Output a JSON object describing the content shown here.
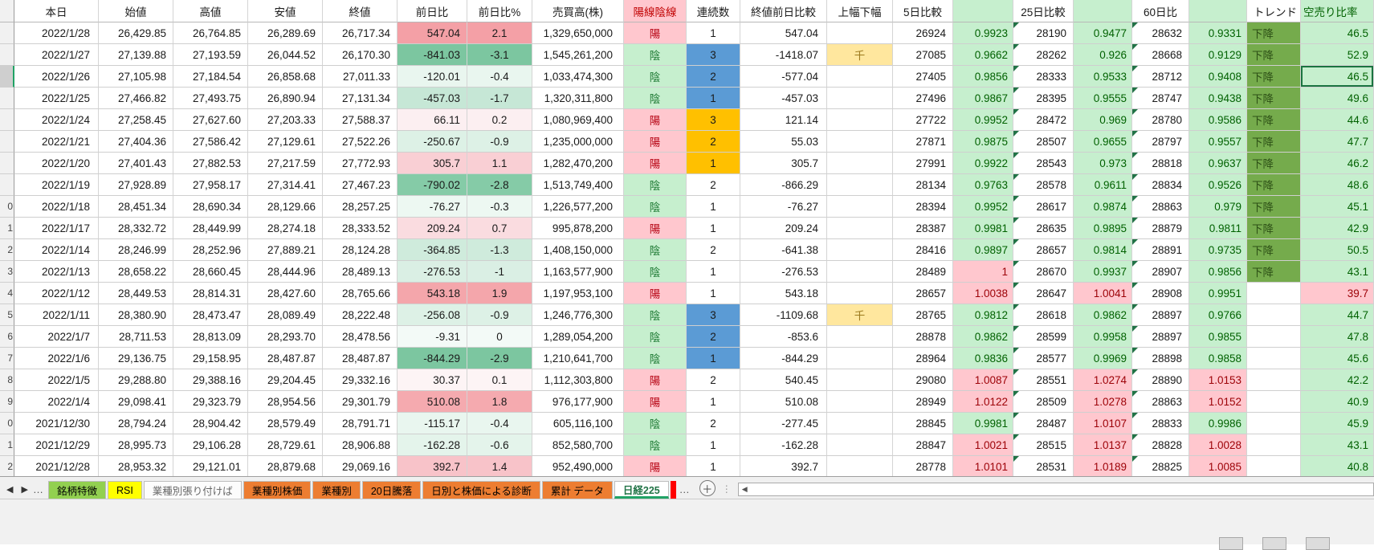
{
  "colors": {
    "accent_green": "#217346",
    "selection_green": "#1a7340",
    "candle_up_bg": "#ffc7ce",
    "candle_up_fg": "#b50010",
    "candle_down_bg": "#c6efce",
    "candle_down_fg": "#1e7a34",
    "ratio_down_bg": "#c6efce",
    "ratio_down_fg": "#006100",
    "ratio_up_bg": "#ffc7ce",
    "ratio_up_fg": "#9c0006",
    "streak_blue": "#5b9bd5",
    "streak_orange": "#ffc000",
    "note_bg": "#ffe79e",
    "note_fg": "#9c7a1d",
    "trend_bg": "#75ab4c"
  },
  "sheet": {
    "header": {
      "labels": [
        "本日",
        "始値",
        "高値",
        "安値",
        "終値",
        "前日比",
        "前日比%",
        "売買高(株)",
        "陽線陰線",
        "連続数",
        "終値前日比較",
        "上幅下幅",
        "5日比較",
        "",
        "25日比較",
        "",
        "60日比",
        "",
        "トレンド",
        "空売り比率"
      ]
    },
    "rows": [
      {
        "n": "",
        "date": "2022/1/28",
        "o": "26,429.85",
        "h": "26,764.85",
        "l": "26,289.69",
        "c": "26,717.34",
        "chg": "547.04",
        "pct": "2.1",
        "cbg": "#f4a0a6",
        "vol": "1,329,650,000",
        "candle": "陽",
        "streak": "1",
        "sbg": "none",
        "cmp": "547.04",
        "note": "",
        "d5": "26924",
        "d5r": "0.9923",
        "d5s": "dn",
        "d25": "28190",
        "d25r": "0.9477",
        "d25s": "dn",
        "d60": "28632",
        "d60r": "0.9331",
        "d60s": "dn",
        "trend": "下降",
        "sr": "46.5",
        "srs": "g",
        "sel": false
      },
      {
        "n": "",
        "date": "2022/1/27",
        "o": "27,139.88",
        "h": "27,193.59",
        "l": "26,044.52",
        "c": "26,170.30",
        "chg": "-841.03",
        "pct": "-3.1",
        "cbg": "#7cc6a0",
        "vol": "1,545,261,200",
        "candle": "陰",
        "streak": "3",
        "sbg": "blue",
        "cmp": "-1418.07",
        "note": "千",
        "d5": "27085",
        "d5r": "0.9662",
        "d5s": "dn",
        "d25": "28262",
        "d25r": "0.926",
        "d25s": "dn",
        "d60": "28668",
        "d60r": "0.9129",
        "d60s": "dn",
        "trend": "下降",
        "sr": "52.9",
        "srs": "g",
        "sel": false
      },
      {
        "n": "",
        "date": "2022/1/26",
        "o": "27,105.98",
        "h": "27,184.54",
        "l": "26,858.68",
        "c": "27,011.33",
        "chg": "-120.01",
        "pct": "-0.4",
        "cbg": "#e9f6ef",
        "vol": "1,033,474,300",
        "candle": "陰",
        "streak": "2",
        "sbg": "blue",
        "cmp": "-577.04",
        "note": "",
        "d5": "27405",
        "d5r": "0.9856",
        "d5s": "dn",
        "d25": "28333",
        "d25r": "0.9533",
        "d25s": "dn",
        "d60": "28712",
        "d60r": "0.9408",
        "d60s": "dn",
        "trend": "下降",
        "sr": "46.5",
        "srs": "g",
        "sel": true
      },
      {
        "n": "",
        "date": "2022/1/25",
        "o": "27,466.82",
        "h": "27,493.75",
        "l": "26,890.94",
        "c": "27,131.34",
        "chg": "-457.03",
        "pct": "-1.7",
        "cbg": "#c6e7d6",
        "vol": "1,320,311,800",
        "candle": "陰",
        "streak": "1",
        "sbg": "blue",
        "cmp": "-457.03",
        "note": "",
        "d5": "27496",
        "d5r": "0.9867",
        "d5s": "dn",
        "d25": "28395",
        "d25r": "0.9555",
        "d25s": "dn",
        "d60": "28747",
        "d60r": "0.9438",
        "d60s": "dn",
        "trend": "下降",
        "sr": "49.6",
        "srs": "g",
        "sel": false
      },
      {
        "n": "",
        "date": "2022/1/24",
        "o": "27,258.45",
        "h": "27,627.60",
        "l": "27,203.33",
        "c": "27,588.37",
        "chg": "66.11",
        "pct": "0.2",
        "cbg": "#fceff1",
        "vol": "1,080,969,400",
        "candle": "陽",
        "streak": "3",
        "sbg": "orange",
        "cmp": "121.14",
        "note": "",
        "d5": "27722",
        "d5r": "0.9952",
        "d5s": "dn",
        "d25": "28472",
        "d25r": "0.969",
        "d25s": "dn",
        "d60": "28780",
        "d60r": "0.9586",
        "d60s": "dn",
        "trend": "下降",
        "sr": "44.6",
        "srs": "g",
        "sel": false
      },
      {
        "n": "",
        "date": "2022/1/21",
        "o": "27,404.36",
        "h": "27,586.42",
        "l": "27,129.61",
        "c": "27,522.26",
        "chg": "-250.67",
        "pct": "-0.9",
        "cbg": "#ddf1e6",
        "vol": "1,235,000,000",
        "candle": "陽",
        "streak": "2",
        "sbg": "orange",
        "cmp": "55.03",
        "note": "",
        "d5": "27871",
        "d5r": "0.9875",
        "d5s": "dn",
        "d25": "28507",
        "d25r": "0.9655",
        "d25s": "dn",
        "d60": "28797",
        "d60r": "0.9557",
        "d60s": "dn",
        "trend": "下降",
        "sr": "47.7",
        "srs": "g",
        "sel": false
      },
      {
        "n": "",
        "date": "2022/1/20",
        "o": "27,401.43",
        "h": "27,882.53",
        "l": "27,217.59",
        "c": "27,772.93",
        "chg": "305.7",
        "pct": "1.1",
        "cbg": "#f9cfd4",
        "vol": "1,282,470,200",
        "candle": "陽",
        "streak": "1",
        "sbg": "orange",
        "cmp": "305.7",
        "note": "",
        "d5": "27991",
        "d5r": "0.9922",
        "d5s": "dn",
        "d25": "28543",
        "d25r": "0.973",
        "d25s": "dn",
        "d60": "28818",
        "d60r": "0.9637",
        "d60s": "dn",
        "trend": "下降",
        "sr": "46.2",
        "srs": "g",
        "sel": false
      },
      {
        "n": "",
        "date": "2022/1/19",
        "o": "27,928.89",
        "h": "27,958.17",
        "l": "27,314.41",
        "c": "27,467.23",
        "chg": "-790.02",
        "pct": "-2.8",
        "cbg": "#85cba7",
        "vol": "1,513,749,400",
        "candle": "陰",
        "streak": "2",
        "sbg": "none",
        "cmp": "-866.29",
        "note": "",
        "d5": "28134",
        "d5r": "0.9763",
        "d5s": "dn",
        "d25": "28578",
        "d25r": "0.9611",
        "d25s": "dn",
        "d60": "28834",
        "d60r": "0.9526",
        "d60s": "dn",
        "trend": "下降",
        "sr": "48.6",
        "srs": "g",
        "sel": false
      },
      {
        "n": "0",
        "date": "2022/1/18",
        "o": "28,451.34",
        "h": "28,690.34",
        "l": "28,129.66",
        "c": "28,257.25",
        "chg": "-76.27",
        "pct": "-0.3",
        "cbg": "#edf8f2",
        "vol": "1,226,577,200",
        "candle": "陰",
        "streak": "1",
        "sbg": "none",
        "cmp": "-76.27",
        "note": "",
        "d5": "28394",
        "d5r": "0.9952",
        "d5s": "dn",
        "d25": "28617",
        "d25r": "0.9874",
        "d25s": "dn",
        "d60": "28863",
        "d60r": "0.979",
        "d60s": "dn",
        "trend": "下降",
        "sr": "45.1",
        "srs": "g",
        "sel": false
      },
      {
        "n": "1",
        "date": "2022/1/17",
        "o": "28,332.72",
        "h": "28,449.99",
        "l": "28,274.18",
        "c": "28,333.52",
        "chg": "209.24",
        "pct": "0.7",
        "cbg": "#fadce0",
        "vol": "995,878,200",
        "candle": "陽",
        "streak": "1",
        "sbg": "none",
        "cmp": "209.24",
        "note": "",
        "d5": "28387",
        "d5r": "0.9981",
        "d5s": "dn",
        "d25": "28635",
        "d25r": "0.9895",
        "d25s": "dn",
        "d60": "28879",
        "d60r": "0.9811",
        "d60s": "dn",
        "trend": "下降",
        "sr": "42.9",
        "srs": "g",
        "sel": false
      },
      {
        "n": "2",
        "date": "2022/1/14",
        "o": "28,246.99",
        "h": "28,252.96",
        "l": "27,889.21",
        "c": "28,124.28",
        "chg": "-364.85",
        "pct": "-1.3",
        "cbg": "#cfebdc",
        "vol": "1,408,150,000",
        "candle": "陰",
        "streak": "2",
        "sbg": "none",
        "cmp": "-641.38",
        "note": "",
        "d5": "28416",
        "d5r": "0.9897",
        "d5s": "dn",
        "d25": "28657",
        "d25r": "0.9814",
        "d25s": "dn",
        "d60": "28891",
        "d60r": "0.9735",
        "d60s": "dn",
        "trend": "下降",
        "sr": "50.5",
        "srs": "g",
        "sel": false
      },
      {
        "n": "3",
        "date": "2022/1/13",
        "o": "28,658.22",
        "h": "28,660.45",
        "l": "28,444.96",
        "c": "28,489.13",
        "chg": "-276.53",
        "pct": "-1",
        "cbg": "#daefe4",
        "vol": "1,163,577,900",
        "candle": "陰",
        "streak": "1",
        "sbg": "none",
        "cmp": "-276.53",
        "note": "",
        "d5": "28489",
        "d5r": "1",
        "d5s": "up",
        "d25": "28670",
        "d25r": "0.9937",
        "d25s": "dn",
        "d60": "28907",
        "d60r": "0.9856",
        "d60s": "dn",
        "trend": "下降",
        "sr": "43.1",
        "srs": "g",
        "sel": false
      },
      {
        "n": "4",
        "date": "2022/1/12",
        "o": "28,449.53",
        "h": "28,814.31",
        "l": "28,427.60",
        "c": "28,765.66",
        "chg": "543.18",
        "pct": "1.9",
        "cbg": "#f4a6ab",
        "vol": "1,197,953,100",
        "candle": "陽",
        "streak": "1",
        "sbg": "none",
        "cmp": "543.18",
        "note": "",
        "d5": "28657",
        "d5r": "1.0038",
        "d5s": "up",
        "d25": "28647",
        "d25r": "1.0041",
        "d25s": "up",
        "d60": "28908",
        "d60r": "0.9951",
        "d60s": "dn",
        "trend": "",
        "sr": "39.7",
        "srs": "p",
        "sel": false
      },
      {
        "n": "5",
        "date": "2022/1/11",
        "o": "28,380.90",
        "h": "28,473.47",
        "l": "28,089.49",
        "c": "28,222.48",
        "chg": "-256.08",
        "pct": "-0.9",
        "cbg": "#ddf1e6",
        "vol": "1,246,776,300",
        "candle": "陰",
        "streak": "3",
        "sbg": "blue",
        "cmp": "-1109.68",
        "note": "千",
        "d5": "28765",
        "d5r": "0.9812",
        "d5s": "dn",
        "d25": "28618",
        "d25r": "0.9862",
        "d25s": "dn",
        "d60": "28897",
        "d60r": "0.9766",
        "d60s": "dn",
        "trend": "",
        "sr": "44.7",
        "srs": "g",
        "sel": false
      },
      {
        "n": "6",
        "date": "2022/1/7",
        "o": "28,711.53",
        "h": "28,813.09",
        "l": "28,293.70",
        "c": "28,478.56",
        "chg": "-9.31",
        "pct": "0",
        "cbg": "#f3faf7",
        "vol": "1,289,054,200",
        "candle": "陰",
        "streak": "2",
        "sbg": "blue",
        "cmp": "-853.6",
        "note": "",
        "d5": "28878",
        "d5r": "0.9862",
        "d5s": "dn",
        "d25": "28599",
        "d25r": "0.9958",
        "d25s": "dn",
        "d60": "28897",
        "d60r": "0.9855",
        "d60s": "dn",
        "trend": "",
        "sr": "47.8",
        "srs": "g",
        "sel": false
      },
      {
        "n": "7",
        "date": "2022/1/6",
        "o": "29,136.75",
        "h": "29,158.95",
        "l": "28,487.87",
        "c": "28,487.87",
        "chg": "-844.29",
        "pct": "-2.9",
        "cbg": "#7cc6a0",
        "vol": "1,210,641,700",
        "candle": "陰",
        "streak": "1",
        "sbg": "blue",
        "cmp": "-844.29",
        "note": "",
        "d5": "28964",
        "d5r": "0.9836",
        "d5s": "dn",
        "d25": "28577",
        "d25r": "0.9969",
        "d25s": "dn",
        "d60": "28898",
        "d60r": "0.9858",
        "d60s": "dn",
        "trend": "",
        "sr": "45.6",
        "srs": "g",
        "sel": false
      },
      {
        "n": "8",
        "date": "2022/1/5",
        "o": "29,288.80",
        "h": "29,388.16",
        "l": "29,204.45",
        "c": "29,332.16",
        "chg": "30.37",
        "pct": "0.1",
        "cbg": "#fdf4f5",
        "vol": "1,112,303,800",
        "candle": "陽",
        "streak": "2",
        "sbg": "none",
        "cmp": "540.45",
        "note": "",
        "d5": "29080",
        "d5r": "1.0087",
        "d5s": "up",
        "d25": "28551",
        "d25r": "1.0274",
        "d25s": "up",
        "d60": "28890",
        "d60r": "1.0153",
        "d60s": "up",
        "trend": "",
        "sr": "42.2",
        "srs": "g",
        "sel": false
      },
      {
        "n": "9",
        "date": "2022/1/4",
        "o": "29,098.41",
        "h": "29,323.79",
        "l": "28,954.56",
        "c": "29,301.79",
        "chg": "510.08",
        "pct": "1.8",
        "cbg": "#f5aaaf",
        "vol": "976,177,900",
        "candle": "陽",
        "streak": "1",
        "sbg": "none",
        "cmp": "510.08",
        "note": "",
        "d5": "28949",
        "d5r": "1.0122",
        "d5s": "up",
        "d25": "28509",
        "d25r": "1.0278",
        "d25s": "up",
        "d60": "28863",
        "d60r": "1.0152",
        "d60s": "up",
        "trend": "",
        "sr": "40.9",
        "srs": "g",
        "sel": false
      },
      {
        "n": "0",
        "date": "2021/12/30",
        "o": "28,794.24",
        "h": "28,904.42",
        "l": "28,579.49",
        "c": "28,791.71",
        "chg": "-115.17",
        "pct": "-0.4",
        "cbg": "#e9f6ef",
        "vol": "605,116,100",
        "candle": "陰",
        "streak": "2",
        "sbg": "none",
        "cmp": "-277.45",
        "note": "",
        "d5": "28845",
        "d5r": "0.9981",
        "d5s": "dn",
        "d25": "28487",
        "d25r": "1.0107",
        "d25s": "up",
        "d60": "28833",
        "d60r": "0.9986",
        "d60s": "dn",
        "trend": "",
        "sr": "45.9",
        "srs": "g",
        "sel": false
      },
      {
        "n": "1",
        "date": "2021/12/29",
        "o": "28,995.73",
        "h": "29,106.28",
        "l": "28,729.61",
        "c": "28,906.88",
        "chg": "-162.28",
        "pct": "-0.6",
        "cbg": "#e4f4eb",
        "vol": "852,580,700",
        "candle": "陰",
        "streak": "1",
        "sbg": "none",
        "cmp": "-162.28",
        "note": "",
        "d5": "28847",
        "d5r": "1.0021",
        "d5s": "up",
        "d25": "28515",
        "d25r": "1.0137",
        "d25s": "up",
        "d60": "28828",
        "d60r": "1.0028",
        "d60s": "up",
        "trend": "",
        "sr": "43.1",
        "srs": "g",
        "sel": false
      },
      {
        "n": "2",
        "date": "2021/12/28",
        "o": "28,953.32",
        "h": "29,121.01",
        "l": "28,879.68",
        "c": "29,069.16",
        "chg": "392.7",
        "pct": "1.4",
        "cbg": "#f8c3c9",
        "vol": "952,490,000",
        "candle": "陽",
        "streak": "1",
        "sbg": "none",
        "cmp": "392.7",
        "note": "",
        "d5": "28778",
        "d5r": "1.0101",
        "d5s": "up",
        "d25": "28531",
        "d25r": "1.0189",
        "d25s": "up",
        "d60": "28825",
        "d60r": "1.0085",
        "d60s": "up",
        "trend": "",
        "sr": "40.8",
        "srs": "g",
        "sel": false
      }
    ]
  },
  "tabs": {
    "nav_prev_icon": "◀",
    "nav_next_icon": "▶",
    "overflow_left": "…",
    "overflow_right": "…",
    "add_label": "＋",
    "scroll_left_icon": "◀",
    "items": [
      {
        "label": "銘柄特徴",
        "bg": "#92d050",
        "fg": "#000000",
        "active": false
      },
      {
        "label": "RSI",
        "bg": "#ffff00",
        "fg": "#000000",
        "active": false
      },
      {
        "label": "業種別張り付けば",
        "bg": "#fcfcfc",
        "fg": "#666666",
        "active": false
      },
      {
        "label": "業種別株価",
        "bg": "#ed7d31",
        "fg": "#000000",
        "active": false
      },
      {
        "label": "業種別",
        "bg": "#ed7d31",
        "fg": "#000000",
        "active": false
      },
      {
        "label": "20日騰落",
        "bg": "#ed7d31",
        "fg": "#000000",
        "active": false
      },
      {
        "label": "日別と株価による診断",
        "bg": "#ed7d31",
        "fg": "#000000",
        "active": false
      },
      {
        "label": "累計 データ",
        "bg": "#ed7d31",
        "fg": "#000000",
        "active": false
      },
      {
        "label": "日経225",
        "bg": "#ffffff",
        "fg": "#217346",
        "active": true
      },
      {
        "label": "",
        "bg": "#ff0000",
        "fg": "#ff0000",
        "active": false
      }
    ]
  }
}
